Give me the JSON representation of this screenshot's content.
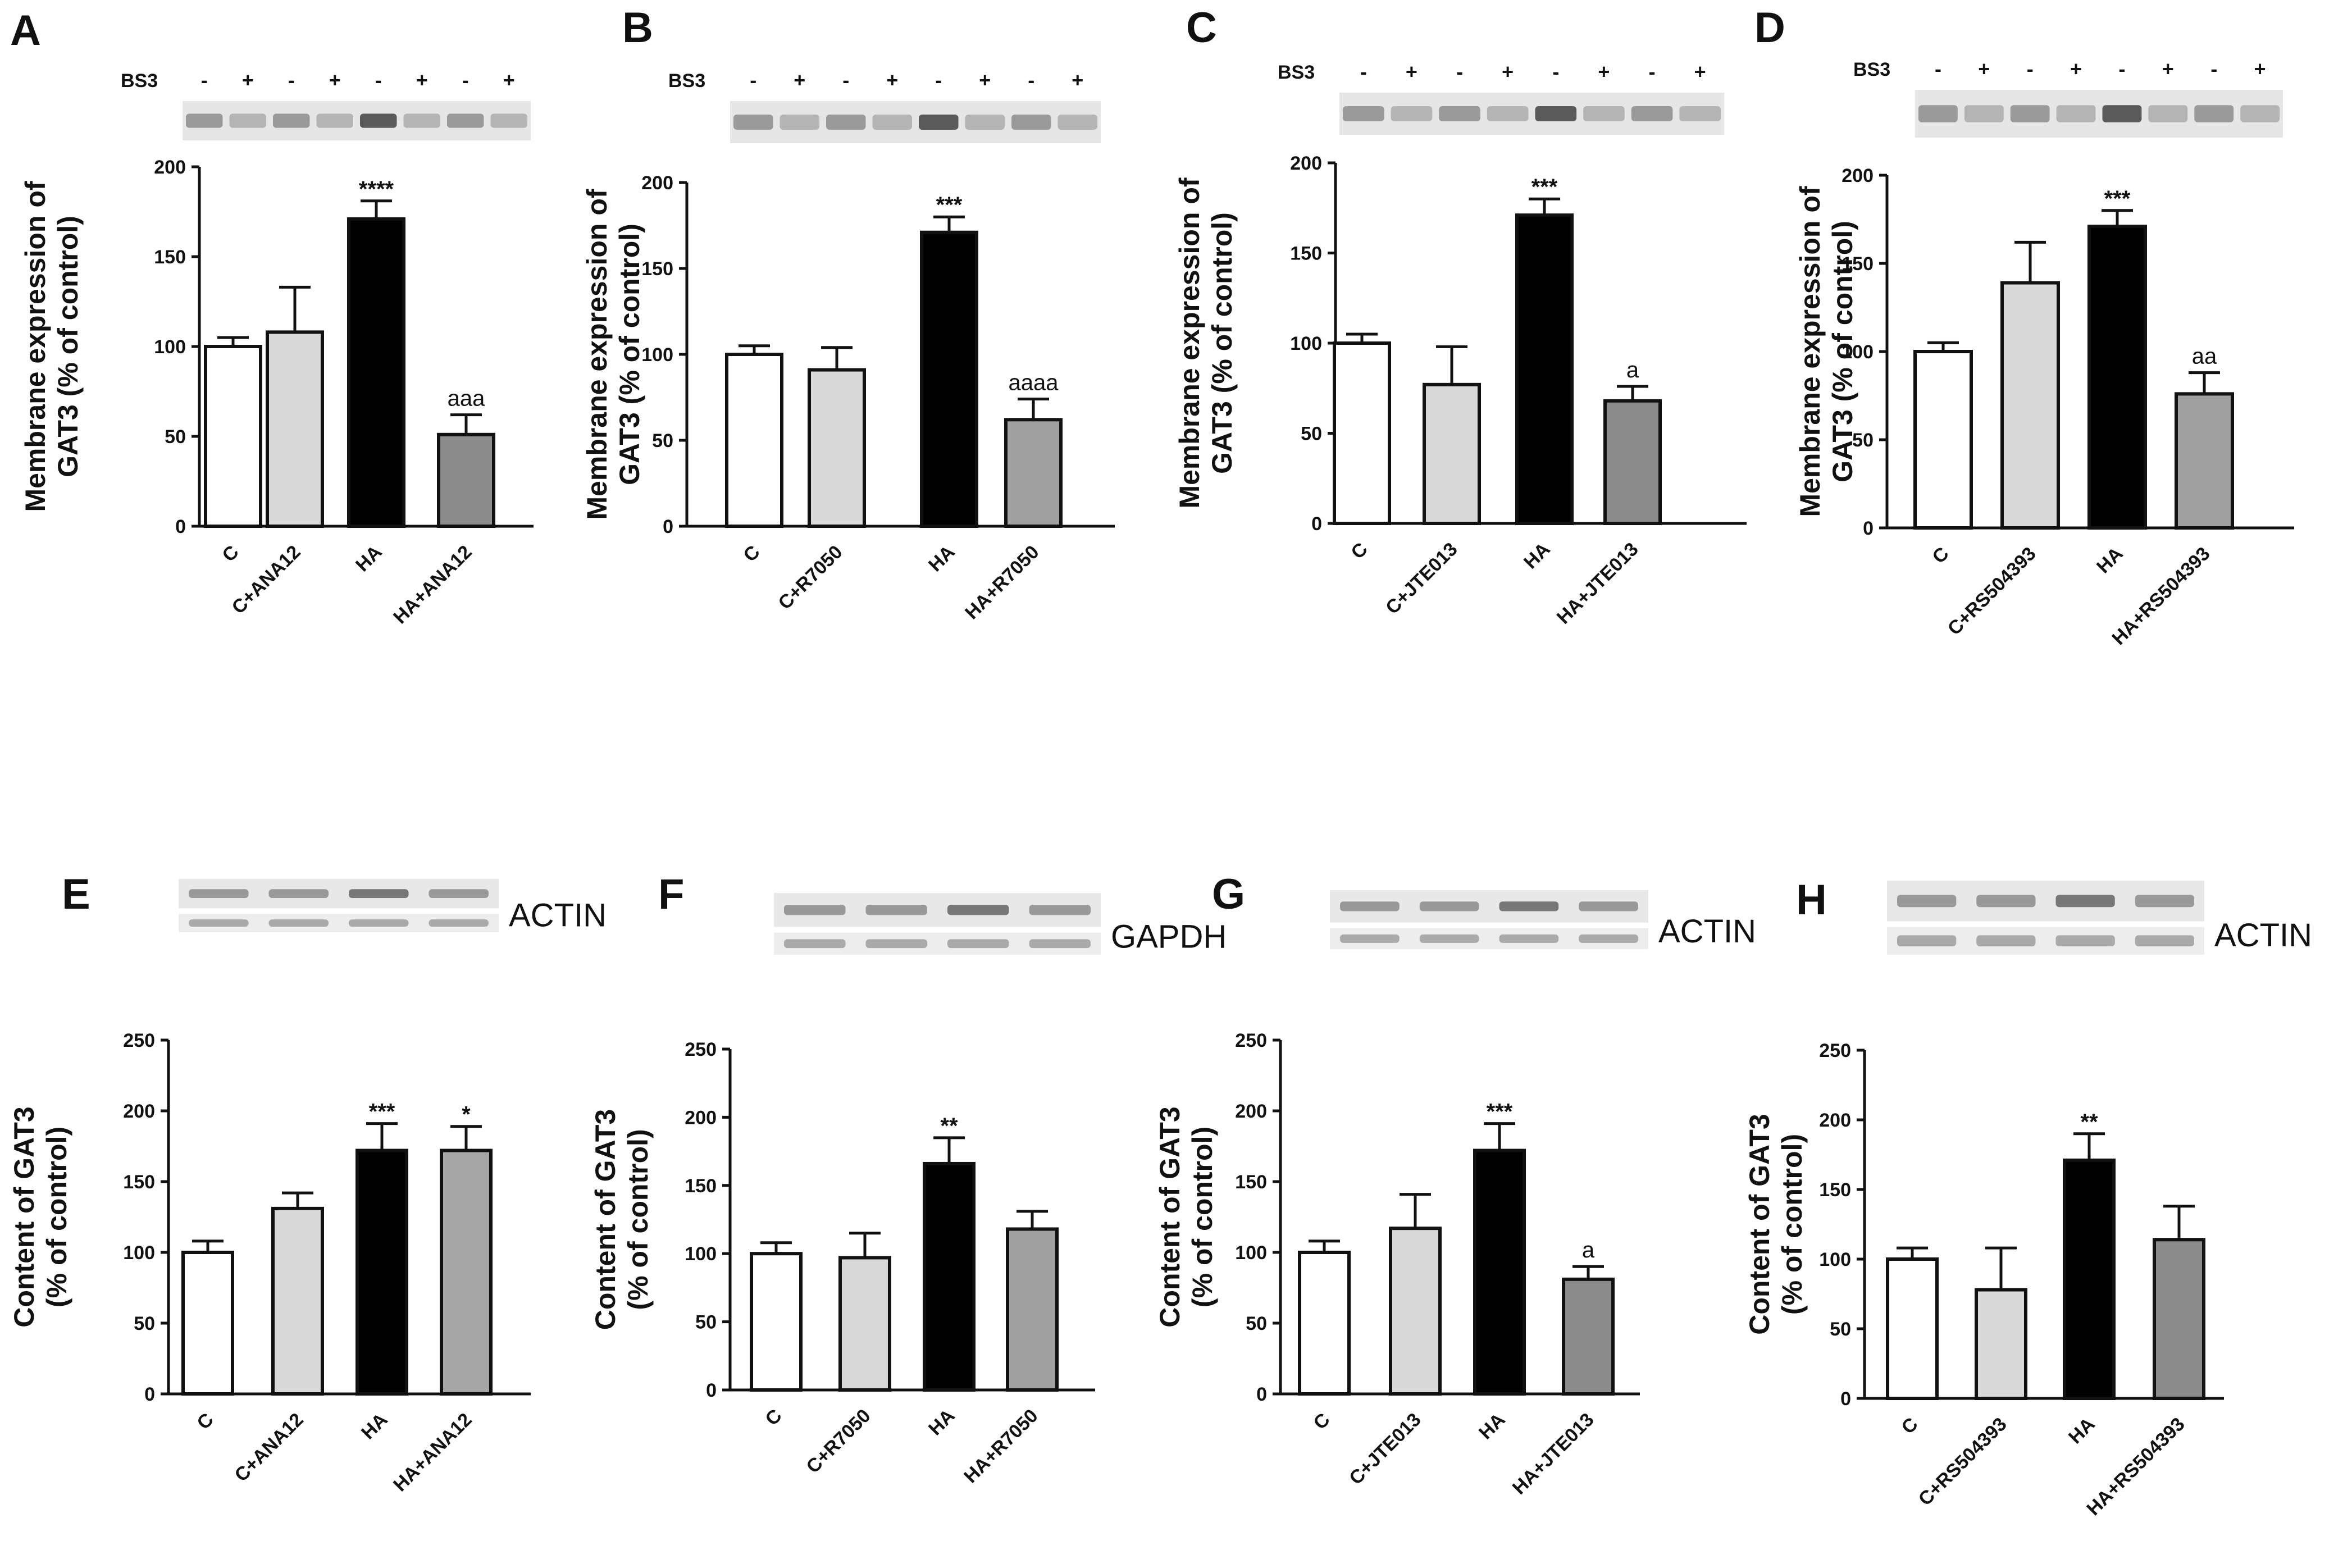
{
  "bs3_label": "BS3",
  "bs3_signs": [
    "-",
    "+",
    "-",
    "+",
    "-",
    "+",
    "-",
    "+"
  ],
  "colors": {
    "C": "#ffffff",
    "C+": "#d9d9d9",
    "HA": "#000000",
    "HA+": "#8c8c8c",
    "HA+E": "#a6a6a6",
    "HA+F": "#a0a0a0"
  },
  "chart_data": [
    {
      "panel": "A",
      "type": "bar",
      "title": "",
      "xlabel": "",
      "ylabel": [
        "Membrane expression of",
        "GAT3 (% of control)"
      ],
      "ylim": [
        0,
        200
      ],
      "yticks": [
        0,
        50,
        100,
        150,
        200
      ],
      "categories": [
        "C",
        "C+ANA12",
        "HA",
        "HA+ANA12"
      ],
      "values": [
        100,
        108,
        171,
        51
      ],
      "errors": [
        5,
        25,
        10,
        11
      ],
      "annotations": [
        "",
        "",
        "****",
        "aaa"
      ],
      "blot": "bs3"
    },
    {
      "panel": "B",
      "type": "bar",
      "title": "",
      "xlabel": "",
      "ylabel": [
        "Membrane expression of",
        "GAT3 (% of control)"
      ],
      "ylim": [
        0,
        200
      ],
      "yticks": [
        0,
        50,
        100,
        150,
        200
      ],
      "categories": [
        "C",
        "C+R7050",
        "HA",
        "HA+R7050"
      ],
      "values": [
        100,
        91,
        171,
        62
      ],
      "errors": [
        5,
        13,
        9,
        12
      ],
      "annotations": [
        "",
        "",
        "***",
        "aaaa"
      ],
      "blot": "bs3"
    },
    {
      "panel": "C",
      "type": "bar",
      "title": "",
      "xlabel": "",
      "ylabel": [
        "Membrane expression of",
        "GAT3 (% of control)"
      ],
      "ylim": [
        0,
        200
      ],
      "yticks": [
        0,
        50,
        100,
        150,
        200
      ],
      "categories": [
        "C",
        "C+JTE013",
        "HA",
        "HA+JTE013"
      ],
      "values": [
        100,
        77,
        171,
        68
      ],
      "errors": [
        5,
        21,
        9,
        8
      ],
      "annotations": [
        "",
        "",
        "***",
        "a"
      ],
      "blot": "bs3"
    },
    {
      "panel": "D",
      "type": "bar",
      "title": "",
      "xlabel": "",
      "ylabel": [
        "Membrane expression of",
        "GAT3 (% of control)"
      ],
      "ylim": [
        0,
        200
      ],
      "yticks": [
        0,
        50,
        100,
        150,
        200
      ],
      "categories": [
        "C",
        "C+RS504393",
        "HA",
        "HA+RS504393"
      ],
      "values": [
        100,
        139,
        171,
        76
      ],
      "errors": [
        5,
        23,
        9,
        12
      ],
      "annotations": [
        "",
        "",
        "***",
        "aa"
      ],
      "blot": "bs3"
    },
    {
      "panel": "E",
      "type": "bar",
      "title": "",
      "xlabel": "",
      "ylabel": [
        "Content of GAT3",
        "(% of control)"
      ],
      "ylim": [
        0,
        250
      ],
      "yticks": [
        0,
        50,
        100,
        150,
        200,
        250
      ],
      "categories": [
        "C",
        "C+ANA12",
        "HA",
        "HA+ANA12"
      ],
      "values": [
        100,
        131,
        172,
        172
      ],
      "errors": [
        8,
        11,
        19,
        17
      ],
      "annotations": [
        "",
        "",
        "***",
        "*"
      ],
      "blot": "loading",
      "loading_label": "ACTIN"
    },
    {
      "panel": "F",
      "type": "bar",
      "title": "",
      "xlabel": "",
      "ylabel": [
        "Content of GAT3",
        "(% of control)"
      ],
      "ylim": [
        0,
        250
      ],
      "yticks": [
        0,
        50,
        100,
        150,
        200,
        250
      ],
      "categories": [
        "C",
        "C+R7050",
        "HA",
        "HA+R7050"
      ],
      "values": [
        100,
        97,
        166,
        118
      ],
      "errors": [
        8,
        18,
        19,
        13
      ],
      "annotations": [
        "",
        "",
        "**",
        ""
      ],
      "blot": "loading",
      "loading_label": "GAPDH"
    },
    {
      "panel": "G",
      "type": "bar",
      "title": "",
      "xlabel": "",
      "ylabel": [
        "Content of GAT3",
        "(% of control)"
      ],
      "ylim": [
        0,
        250
      ],
      "yticks": [
        0,
        50,
        100,
        150,
        200,
        250
      ],
      "categories": [
        "C",
        "C+JTE013",
        "HA",
        "HA+JTE013"
      ],
      "values": [
        100,
        117,
        172,
        81
      ],
      "errors": [
        8,
        24,
        19,
        9
      ],
      "annotations": [
        "",
        "",
        "***",
        "a"
      ],
      "blot": "loading",
      "loading_label": "ACTIN"
    },
    {
      "panel": "H",
      "type": "bar",
      "title": "",
      "xlabel": "",
      "ylabel": [
        "Content of GAT3",
        "(% of control)"
      ],
      "ylim": [
        0,
        250
      ],
      "yticks": [
        0,
        50,
        100,
        150,
        200,
        250
      ],
      "categories": [
        "C",
        "C+RS504393",
        "HA",
        "HA+RS504393"
      ],
      "values": [
        100,
        78,
        171,
        114
      ],
      "errors": [
        8,
        30,
        19,
        24
      ],
      "annotations": [
        "",
        "",
        "**",
        ""
      ],
      "blot": "loading",
      "loading_label": "ACTIN"
    }
  ]
}
